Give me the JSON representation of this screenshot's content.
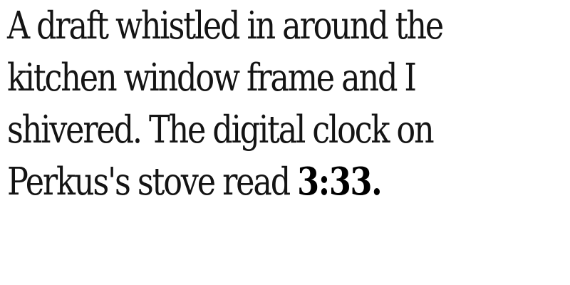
{
  "passage": {
    "lines": [
      "A draft whistled in around the",
      "kitchen window frame and I",
      "shivered. The digital clock on"
    ],
    "last_line_prefix": "Perkus's stove read ",
    "time_display": "3:33."
  }
}
